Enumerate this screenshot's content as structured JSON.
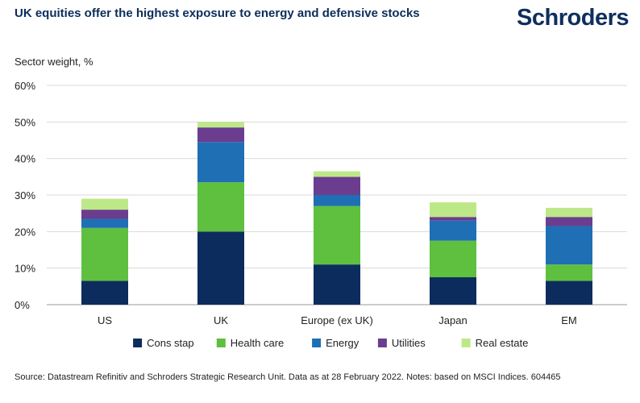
{
  "header": {
    "title": "UK equities offer the highest exposure to energy and defensive stocks",
    "logo": "Schroders"
  },
  "footer": {
    "source": "Source: Datastream Refinitiv and Schroders Strategic Research Unit. Data as at 28 February 2022. Notes: based on MSCI Indices. 604465"
  },
  "chart_data": {
    "type": "bar",
    "stacked": true,
    "title": "UK equities offer the highest exposure to energy and defensive stocks",
    "ylabel": "Sector weight, %",
    "xlabel": "",
    "ylim": [
      0,
      60
    ],
    "yticks": [
      "0%",
      "10%",
      "20%",
      "30%",
      "40%",
      "50%",
      "60%"
    ],
    "ytick_values": [
      0,
      10,
      20,
      30,
      40,
      50,
      60
    ],
    "grid": true,
    "legend_position": "bottom",
    "categories": [
      "US",
      "UK",
      "Europe (ex UK)",
      "Japan",
      "EM"
    ],
    "series": [
      {
        "name": "Cons stap",
        "color": "#0d2c5e",
        "values": [
          6.5,
          20.0,
          11.0,
          7.5,
          6.5
        ]
      },
      {
        "name": "Health care",
        "color": "#5fbf3f",
        "values": [
          14.5,
          13.5,
          16.0,
          10.0,
          4.5
        ]
      },
      {
        "name": "Energy",
        "color": "#1f6fb5",
        "values": [
          2.5,
          11.0,
          3.0,
          5.5,
          10.5
        ]
      },
      {
        "name": "Utilities",
        "color": "#6b3d8f",
        "values": [
          2.5,
          4.0,
          5.0,
          1.0,
          2.5
        ]
      },
      {
        "name": "Real estate",
        "color": "#bde887",
        "values": [
          3.0,
          1.5,
          1.5,
          4.0,
          2.5
        ]
      }
    ]
  }
}
